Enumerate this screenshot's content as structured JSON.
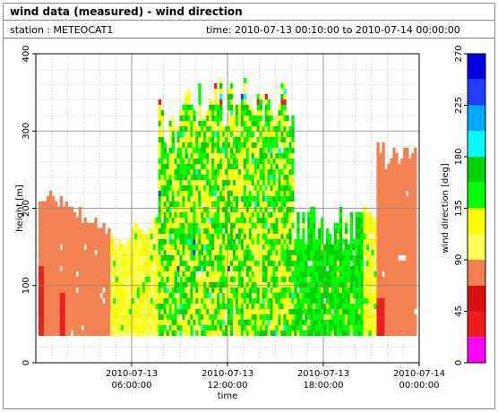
{
  "header": {
    "title": "wind data (measured) - wind direction",
    "station": "station : METEOCAT1",
    "time_range": "time: 2010-07-13 00:10:00 to 2010-07-14 00:00:00"
  },
  "chart_data": {
    "type": "heatmap",
    "title": "wind data (measured) - wind direction",
    "xlabel": "time",
    "ylabel": "height [m]",
    "colorbar_label": "wind direction [deg]",
    "xlim_hours": [
      0,
      24
    ],
    "x_ticks": [
      {
        "hours": 6,
        "label_line1": "2010-07-13",
        "label_line2": "06:00:00"
      },
      {
        "hours": 12,
        "label_line1": "2010-07-13",
        "label_line2": "12:00:00"
      },
      {
        "hours": 18,
        "label_line1": "2010-07-13",
        "label_line2": "18:00:00"
      },
      {
        "hours": 24,
        "label_line1": "2010-07-14",
        "label_line2": "00:00:00"
      }
    ],
    "ylim": [
      0,
      400
    ],
    "y_ticks": [
      0,
      100,
      200,
      300,
      400
    ],
    "grid": true,
    "colorbar": {
      "range": [
        0,
        270
      ],
      "ticks": [
        0,
        45,
        90,
        135,
        180,
        225,
        270
      ],
      "bins": [
        {
          "from": 0,
          "to": 22.5,
          "color": "#ff00ff"
        },
        {
          "from": 22.5,
          "to": 45,
          "color": "#ee1c1c"
        },
        {
          "from": 45,
          "to": 67.5,
          "color": "#d81010"
        },
        {
          "from": 67.5,
          "to": 90,
          "color": "#f58050"
        },
        {
          "from": 90,
          "to": 112.5,
          "color": "#ffff55"
        },
        {
          "from": 112.5,
          "to": 135,
          "color": "#ffff00"
        },
        {
          "from": 135,
          "to": 157.5,
          "color": "#00ff00"
        },
        {
          "from": 157.5,
          "to": 180,
          "color": "#00d400"
        },
        {
          "from": 180,
          "to": 202.5,
          "color": "#00ffff"
        },
        {
          "from": 202.5,
          "to": 225,
          "color": "#00aaff"
        },
        {
          "from": 225,
          "to": 247.5,
          "color": "#1e3fff"
        },
        {
          "from": 247.5,
          "to": 270,
          "color": "#0000e0"
        }
      ]
    },
    "approx_regions": [
      {
        "time_hours": [
          0.2,
          4.6
        ],
        "height_m": [
          35,
          245
        ],
        "direction": "orange (~75-90 deg)"
      },
      {
        "time_hours": [
          4.6,
          7.6
        ],
        "height_m": [
          35,
          170
        ],
        "direction": "yellow (~95-120 deg)"
      },
      {
        "time_hours": [
          7.6,
          16.2
        ],
        "height_m": [
          35,
          365
        ],
        "direction": "mixed yellow / green (~100-160 deg)"
      },
      {
        "time_hours": [
          16.2,
          20.5
        ],
        "height_m": [
          35,
          200
        ],
        "direction": "green (~135-160 deg)"
      },
      {
        "time_hours": [
          20.5,
          21.3
        ],
        "height_m": [
          35,
          210
        ],
        "direction": "yellow (~100-130 deg)"
      },
      {
        "time_hours": [
          21.3,
          23.8
        ],
        "height_m": [
          35,
          285
        ],
        "direction": "orange (~75-90 deg)"
      }
    ]
  }
}
